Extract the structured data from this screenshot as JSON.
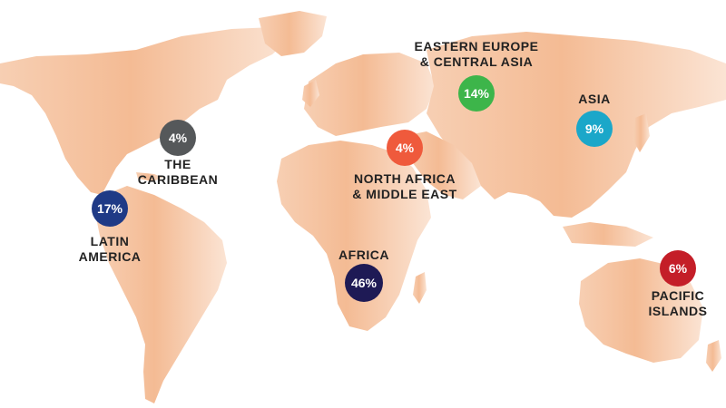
{
  "map": {
    "land_color": "#f6c9aa",
    "land_color_light": "#fbe2d0",
    "land_color_dark": "#f0b088"
  },
  "regions": [
    {
      "id": "eastern-europe",
      "label_lines": [
        "EASTERN EUROPE",
        "& CENTRAL ASIA"
      ],
      "value": "14%",
      "color": "#3db54a"
    },
    {
      "id": "asia",
      "label_lines": [
        "ASIA"
      ],
      "value": "9%",
      "color": "#1ba7c9"
    },
    {
      "id": "caribbean",
      "label_lines": [
        "THE",
        "CARIBBEAN"
      ],
      "value": "4%",
      "color": "#55585a"
    },
    {
      "id": "north-africa",
      "label_lines": [
        "NORTH AFRICA",
        "& MIDDLE EAST"
      ],
      "value": "4%",
      "color": "#ef5a3c"
    },
    {
      "id": "latin-america",
      "label_lines": [
        "LATIN",
        "AMERICA"
      ],
      "value": "17%",
      "color": "#1f3a86"
    },
    {
      "id": "africa",
      "label_lines": [
        "AFRICA"
      ],
      "value": "46%",
      "color": "#1e1a55"
    },
    {
      "id": "pacific-islands",
      "label_lines": [
        "PACIFIC",
        "ISLANDS"
      ],
      "value": "6%",
      "color": "#c41e28"
    }
  ]
}
